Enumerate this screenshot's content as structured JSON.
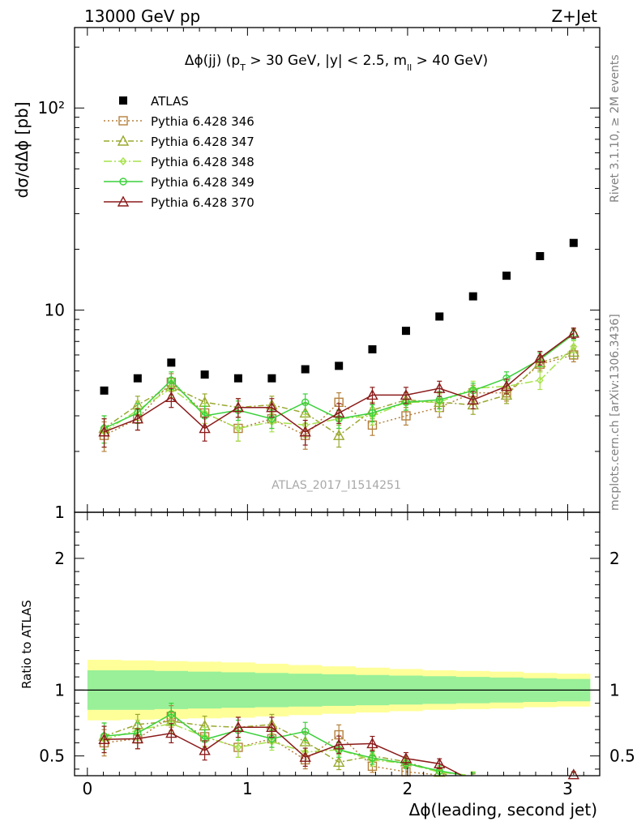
{
  "header": {
    "left": "13000 GeV pp",
    "right": "Z+Jet"
  },
  "side_labels": {
    "rivet": "Rivet 3.1.10, ≥ 2M events",
    "mcplots": "mcplots.cern.ch [arXiv:1306.3436]"
  },
  "chart_data": {
    "type": "scatter",
    "title": "Δϕ(jj) (p_T > 30 GeV, |y| < 2.5, m_ll > 40 GeV)",
    "title_parts": {
      "a": "Δϕ(jj) (p",
      "sub1": "T",
      "b": " > 30 GeV, |y| < 2.5, m",
      "sub2": "ll",
      "c": " > 40 GeV)"
    },
    "watermark": "ATLAS_2017_I1514251",
    "xlabel": "Δϕ(leading, second jet)",
    "ylabel": "dσ/dΔϕ [pb]",
    "ratio_ylabel": "Ratio to ATLAS",
    "xlim": [
      -0.08,
      3.2
    ],
    "ylim": [
      1,
      250
    ],
    "yscale": "log",
    "ratio_ylim": [
      0.35,
      2.35
    ],
    "x_ticks": [
      "0",
      "1",
      "2",
      "3"
    ],
    "y_ticks": [
      "1",
      "10",
      "10²"
    ],
    "ratio_ticks": [
      "0.5",
      "1",
      "2"
    ],
    "x": [
      0.105,
      0.314,
      0.524,
      0.733,
      0.942,
      1.152,
      1.361,
      1.571,
      1.78,
      1.99,
      2.199,
      2.409,
      2.618,
      2.827,
      3.037
    ],
    "series": [
      {
        "name": "ATLAS",
        "color": "#000000",
        "marker": "square-filled",
        "values": [
          4.0,
          4.6,
          5.5,
          4.8,
          4.6,
          4.6,
          5.1,
          5.3,
          6.4,
          7.9,
          9.3,
          11.7,
          14.8,
          18.5,
          21.5
        ]
      },
      {
        "name": "Pythia 6.428 346",
        "color": "#b5803c",
        "marker": "square-open",
        "dash": "2,3",
        "values": [
          2.4,
          2.9,
          4.4,
          3.1,
          2.6,
          2.9,
          2.4,
          3.5,
          2.7,
          3.0,
          3.3,
          3.9,
          3.9,
          5.4,
          6.0
        ],
        "errors": [
          0.4,
          0.35,
          0.45,
          0.35,
          0.35,
          0.3,
          0.35,
          0.4,
          0.3,
          0.3,
          0.35,
          0.35,
          0.35,
          0.45,
          0.45
        ]
      },
      {
        "name": "Pythia 6.428 347",
        "color": "#9aa82e",
        "marker": "triangle-open",
        "dash": "7,3,2,3",
        "values": [
          2.6,
          3.4,
          4.2,
          3.5,
          3.3,
          3.4,
          3.1,
          2.4,
          3.2,
          3.6,
          3.5,
          3.4,
          3.8,
          5.5,
          6.2
        ],
        "errors": [
          0.4,
          0.35,
          0.4,
          0.35,
          0.35,
          0.35,
          0.35,
          0.3,
          0.3,
          0.3,
          0.35,
          0.35,
          0.35,
          0.45,
          0.45
        ]
      },
      {
        "name": "Pythia 6.428 348",
        "color": "#a6e24a",
        "marker": "diamond-open",
        "dash": "10,3,2,3",
        "values": [
          2.5,
          3.2,
          4.1,
          3.1,
          2.6,
          2.8,
          2.7,
          2.9,
          3.0,
          3.5,
          3.5,
          4.1,
          4.2,
          4.5,
          6.6
        ],
        "errors": [
          0.4,
          0.35,
          0.4,
          0.35,
          0.35,
          0.3,
          0.35,
          0.3,
          0.3,
          0.3,
          0.35,
          0.35,
          0.35,
          0.45,
          0.45
        ]
      },
      {
        "name": "Pythia 6.428 349",
        "color": "#3ad13a",
        "marker": "circle-open",
        "dash": "",
        "values": [
          2.6,
          3.1,
          4.5,
          3.0,
          3.2,
          2.9,
          3.5,
          2.9,
          3.1,
          3.5,
          3.6,
          4.0,
          4.6,
          5.7,
          7.6
        ],
        "errors": [
          0.4,
          0.35,
          0.45,
          0.35,
          0.35,
          0.3,
          0.35,
          0.3,
          0.3,
          0.3,
          0.35,
          0.35,
          0.35,
          0.45,
          0.45
        ]
      },
      {
        "name": "Pythia 6.428 370",
        "color": "#8b1a1a",
        "marker": "triangle-open",
        "dash": "",
        "values": [
          2.5,
          2.9,
          3.7,
          2.6,
          3.3,
          3.3,
          2.5,
          3.1,
          3.8,
          3.8,
          4.1,
          3.6,
          4.2,
          5.8,
          7.7
        ],
        "errors": [
          0.4,
          0.35,
          0.4,
          0.35,
          0.35,
          0.35,
          0.35,
          0.35,
          0.35,
          0.35,
          0.35,
          0.35,
          0.35,
          0.45,
          0.45
        ]
      }
    ],
    "ratio_band": {
      "inner_halfwidth": [
        0.15,
        0.15,
        0.145,
        0.14,
        0.135,
        0.13,
        0.125,
        0.12,
        0.115,
        0.11,
        0.105,
        0.1,
        0.095,
        0.09,
        0.085
      ],
      "outer_halfwidth": [
        0.23,
        0.225,
        0.22,
        0.215,
        0.21,
        0.2,
        0.19,
        0.18,
        0.17,
        0.16,
        0.15,
        0.145,
        0.14,
        0.13,
        0.125
      ],
      "inner_color": "#99f099",
      "outer_color": "#ffff99"
    },
    "legend_position": "top-left"
  }
}
